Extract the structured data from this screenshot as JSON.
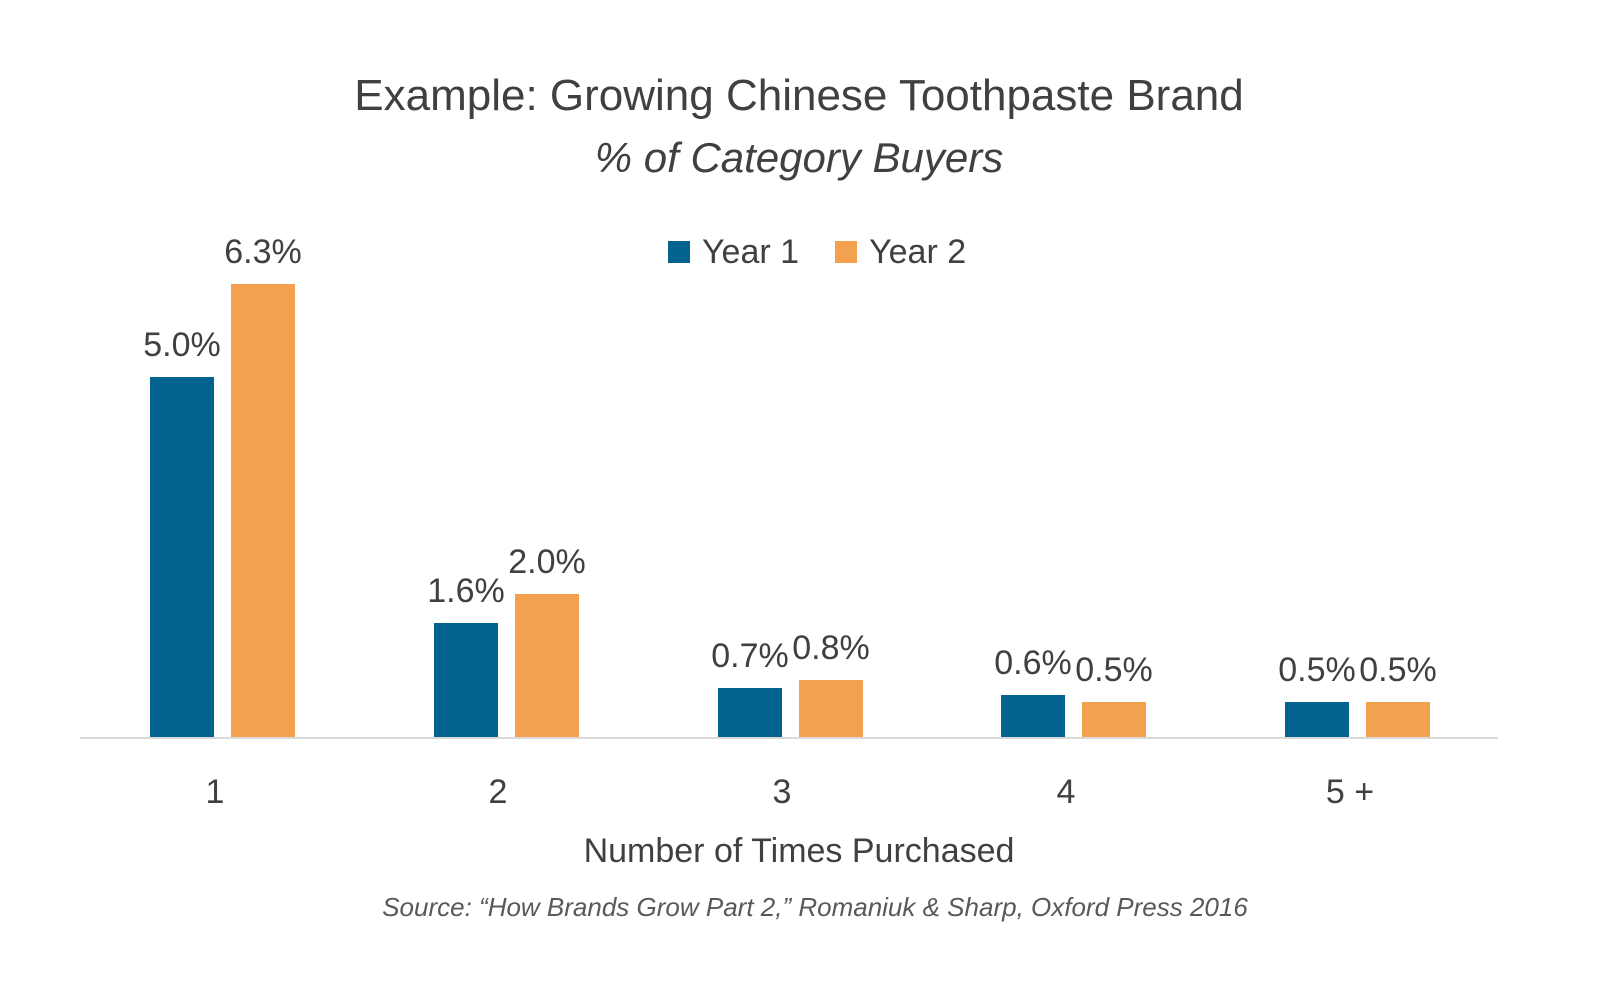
{
  "chart_data": {
    "type": "bar",
    "title": "Example: Growing Chinese Toothpaste Brand",
    "subtitle": "% of Category Buyers",
    "xlabel": "Number of Times Purchased",
    "ylabel": "",
    "categories": [
      "1",
      "2",
      "3",
      "4",
      "5 +"
    ],
    "series": [
      {
        "name": "Year 1",
        "color": "#02638F",
        "values": [
          5.0,
          1.6,
          0.7,
          0.6,
          0.5
        ],
        "labels": [
          "5.0%",
          "1.6%",
          "0.7%",
          "0.6%",
          "0.5%"
        ]
      },
      {
        "name": "Year 2",
        "color": "#F4A14F",
        "values": [
          6.3,
          2.0,
          0.8,
          0.5,
          0.5
        ],
        "labels": [
          "6.3%",
          "2.0%",
          "0.8%",
          "0.5%",
          "0.5%"
        ]
      }
    ],
    "ylim": [
      0,
      7
    ],
    "grid": false,
    "legend_position": "top",
    "source": "Source: “How Brands Grow Part 2,” Romaniuk & Sharp, Oxford Press 2016"
  }
}
